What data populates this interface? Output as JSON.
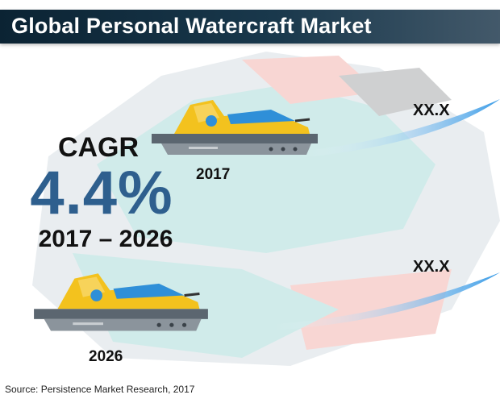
{
  "title": "Global Personal Watercraft Market",
  "cagr": {
    "label": "CAGR",
    "value": "4.4%",
    "period": "2017 – 2026"
  },
  "markers": [
    {
      "year": "2017",
      "value": "XX.X"
    },
    {
      "year": "2026",
      "value": "XX.X"
    }
  ],
  "source": "Source: Persistence Market Research, 2017",
  "colors": {
    "title_bar": "#0f2a3c",
    "cagr_value": "#2e5f8e",
    "craft_body": "#f3c21e",
    "craft_seat": "#2f8fd8",
    "craft_hull": "#5b6670",
    "swoosh": "#3a9be6"
  },
  "icons": [
    "jet-ski-icon",
    "growth-swoosh-icon"
  ]
}
